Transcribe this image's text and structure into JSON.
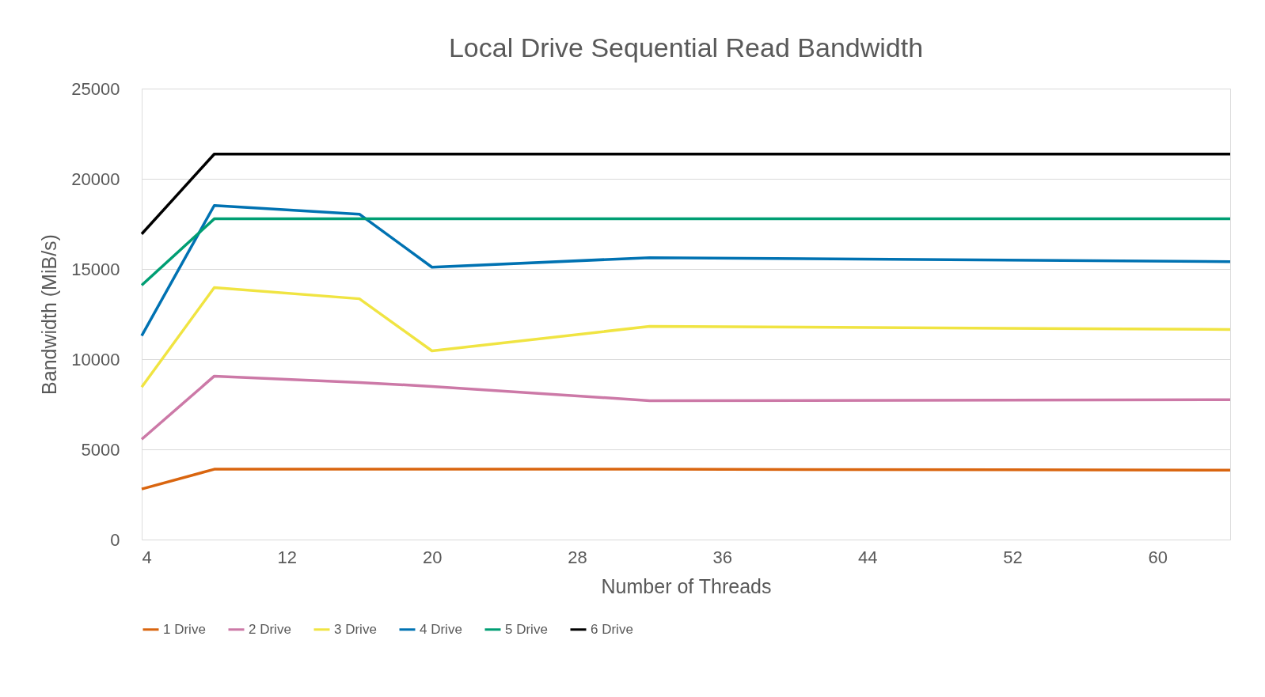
{
  "chart_data": {
    "type": "line",
    "title": "Local Drive Sequential Read Bandwidth",
    "xlabel": "Number of Threads",
    "ylabel": "Bandwidth (MiB/s)",
    "x": [
      4,
      8,
      16,
      20,
      32,
      64
    ],
    "series": [
      {
        "name": "1 Drive",
        "color": "#d9650f",
        "values": [
          2800,
          3900,
          3900,
          3900,
          3900,
          3850
        ]
      },
      {
        "name": "2 Drive",
        "color": "#cc79a7",
        "values": [
          5560,
          9060,
          8710,
          8490,
          7700,
          7750
        ]
      },
      {
        "name": "3 Drive",
        "color": "#f0e442",
        "values": [
          8450,
          13970,
          13350,
          10460,
          11820,
          11650
        ]
      },
      {
        "name": "4 Drive",
        "color": "#0072b2",
        "values": [
          11300,
          18520,
          18040,
          15100,
          15630,
          15410
        ]
      },
      {
        "name": "5 Drive",
        "color": "#009e73",
        "values": [
          14100,
          17780,
          17780,
          17780,
          17780,
          17780
        ]
      },
      {
        "name": "6 Drive",
        "color": "#000000",
        "values": [
          16940,
          21370,
          21370,
          21370,
          21370,
          21370
        ]
      }
    ],
    "xlim": [
      4,
      64
    ],
    "xticks": [
      4,
      12,
      20,
      28,
      36,
      44,
      52,
      60
    ],
    "ylim": [
      0,
      25000
    ],
    "yticks": [
      0,
      5000,
      10000,
      15000,
      20000,
      25000
    ],
    "grid": "y",
    "legend": "bottom",
    "marker": "none",
    "line_style": "solid"
  }
}
